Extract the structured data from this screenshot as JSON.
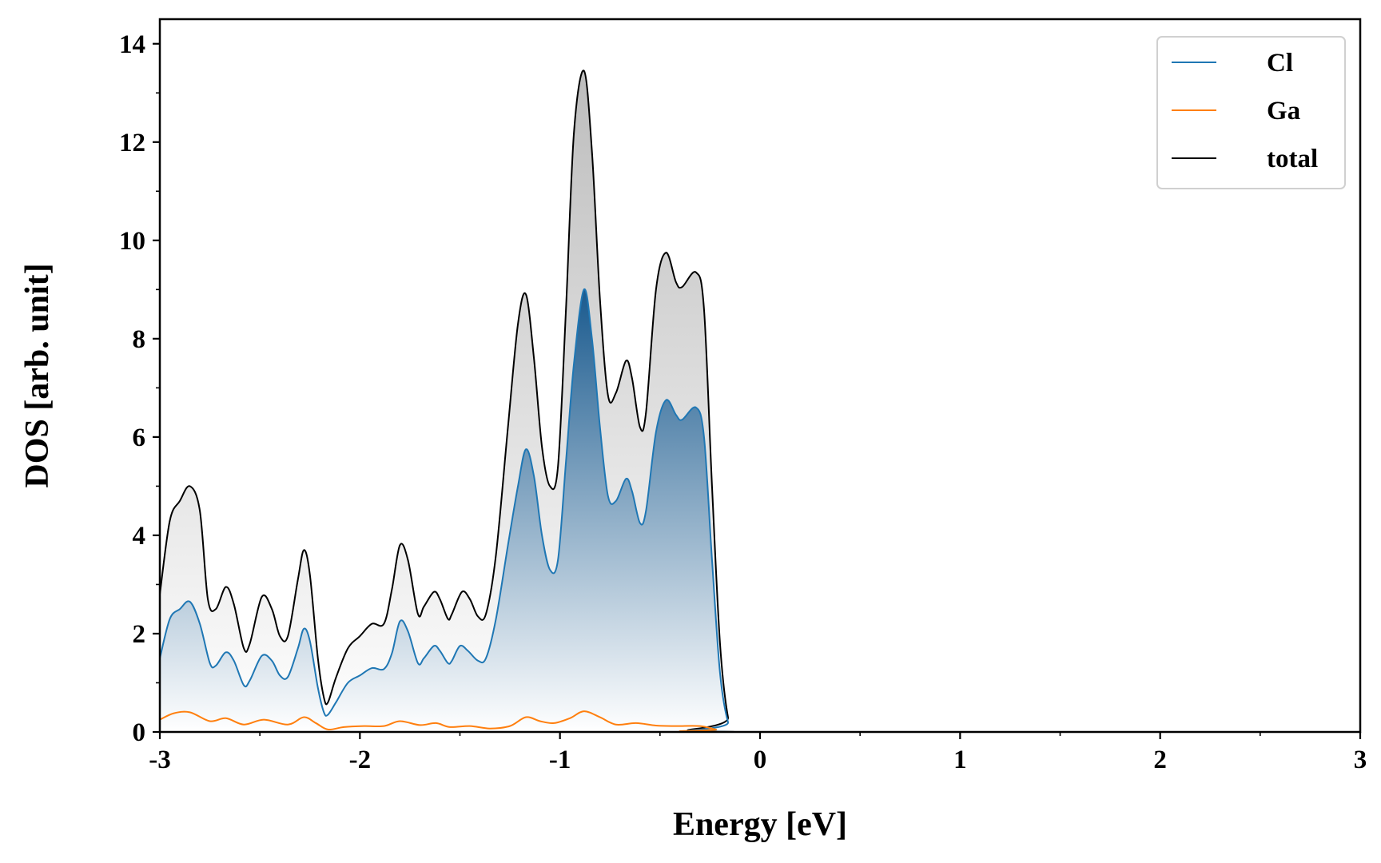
{
  "chart_data": {
    "type": "area",
    "xlabel": "Energy [eV]",
    "ylabel": "DOS [arb. unit]",
    "xlim": [
      -3,
      3
    ],
    "ylim": [
      0,
      14.5
    ],
    "xticks": [
      -3,
      -2,
      -1,
      0,
      1,
      2,
      3
    ],
    "xtick_labels": [
      "-3",
      "-2",
      "-1",
      "0",
      "1",
      "2",
      "3"
    ],
    "yticks": [
      0,
      2,
      4,
      6,
      8,
      10,
      12,
      14
    ],
    "ytick_labels": [
      "0",
      "2",
      "4",
      "6",
      "8",
      "10",
      "12",
      "14"
    ],
    "grid": false,
    "legend_position": "top-right",
    "series": [
      {
        "name": "Cl",
        "color": "#1f77b4",
        "fill": "blue-gradient",
        "points": [
          [
            -3.0,
            1.5
          ],
          [
            -2.95,
            2.3
          ],
          [
            -2.9,
            2.5
          ],
          [
            -2.85,
            2.65
          ],
          [
            -2.8,
            2.2
          ],
          [
            -2.75,
            1.4
          ],
          [
            -2.72,
            1.35
          ],
          [
            -2.67,
            1.62
          ],
          [
            -2.63,
            1.45
          ],
          [
            -2.58,
            0.95
          ],
          [
            -2.55,
            1.05
          ],
          [
            -2.49,
            1.55
          ],
          [
            -2.44,
            1.45
          ],
          [
            -2.4,
            1.15
          ],
          [
            -2.36,
            1.12
          ],
          [
            -2.31,
            1.7
          ],
          [
            -2.28,
            2.1
          ],
          [
            -2.25,
            1.85
          ],
          [
            -2.21,
            0.9
          ],
          [
            -2.18,
            0.4
          ],
          [
            -2.16,
            0.35
          ],
          [
            -2.12,
            0.6
          ],
          [
            -2.06,
            1.0
          ],
          [
            -2.0,
            1.15
          ],
          [
            -1.94,
            1.3
          ],
          [
            -1.88,
            1.28
          ],
          [
            -1.84,
            1.6
          ],
          [
            -1.8,
            2.25
          ],
          [
            -1.76,
            2.05
          ],
          [
            -1.71,
            1.4
          ],
          [
            -1.68,
            1.5
          ],
          [
            -1.63,
            1.75
          ],
          [
            -1.6,
            1.65
          ],
          [
            -1.56,
            1.4
          ],
          [
            -1.54,
            1.45
          ],
          [
            -1.5,
            1.75
          ],
          [
            -1.46,
            1.65
          ],
          [
            -1.41,
            1.45
          ],
          [
            -1.37,
            1.5
          ],
          [
            -1.32,
            2.3
          ],
          [
            -1.26,
            3.8
          ],
          [
            -1.21,
            5.0
          ],
          [
            -1.17,
            5.75
          ],
          [
            -1.13,
            5.2
          ],
          [
            -1.09,
            4.0
          ],
          [
            -1.05,
            3.3
          ],
          [
            -1.01,
            3.5
          ],
          [
            -0.97,
            5.5
          ],
          [
            -0.93,
            7.5
          ],
          [
            -0.88,
            9.0
          ],
          [
            -0.84,
            8.0
          ],
          [
            -0.8,
            6.2
          ],
          [
            -0.76,
            4.8
          ],
          [
            -0.72,
            4.7
          ],
          [
            -0.67,
            5.15
          ],
          [
            -0.64,
            4.9
          ],
          [
            -0.6,
            4.25
          ],
          [
            -0.57,
            4.5
          ],
          [
            -0.52,
            6.1
          ],
          [
            -0.47,
            6.75
          ],
          [
            -0.42,
            6.45
          ],
          [
            -0.39,
            6.35
          ],
          [
            -0.32,
            6.6
          ],
          [
            -0.28,
            6.0
          ],
          [
            -0.24,
            3.5
          ],
          [
            -0.2,
            1.2
          ],
          [
            -0.16,
            0.2
          ],
          [
            -0.12,
            0.0
          ],
          [
            3.0,
            0.0
          ]
        ]
      },
      {
        "name": "Ga",
        "color": "#ff7f0e",
        "points": [
          [
            -3.0,
            0.25
          ],
          [
            -2.93,
            0.38
          ],
          [
            -2.85,
            0.4
          ],
          [
            -2.75,
            0.22
          ],
          [
            -2.67,
            0.28
          ],
          [
            -2.58,
            0.15
          ],
          [
            -2.48,
            0.25
          ],
          [
            -2.36,
            0.15
          ],
          [
            -2.28,
            0.3
          ],
          [
            -2.22,
            0.18
          ],
          [
            -2.16,
            0.05
          ],
          [
            -2.08,
            0.1
          ],
          [
            -1.98,
            0.12
          ],
          [
            -1.88,
            0.12
          ],
          [
            -1.8,
            0.22
          ],
          [
            -1.7,
            0.14
          ],
          [
            -1.62,
            0.18
          ],
          [
            -1.55,
            0.1
          ],
          [
            -1.45,
            0.12
          ],
          [
            -1.35,
            0.07
          ],
          [
            -1.25,
            0.12
          ],
          [
            -1.17,
            0.3
          ],
          [
            -1.1,
            0.22
          ],
          [
            -1.03,
            0.18
          ],
          [
            -0.95,
            0.28
          ],
          [
            -0.88,
            0.42
          ],
          [
            -0.8,
            0.3
          ],
          [
            -0.72,
            0.15
          ],
          [
            -0.62,
            0.18
          ],
          [
            -0.52,
            0.13
          ],
          [
            -0.42,
            0.12
          ],
          [
            -0.3,
            0.12
          ],
          [
            -0.22,
            0.05
          ],
          [
            -0.15,
            0.0
          ],
          [
            3.0,
            0.0
          ]
        ]
      },
      {
        "name": "total",
        "color": "#000000",
        "fill": "gray-gradient",
        "points": [
          [
            -3.0,
            2.8
          ],
          [
            -2.95,
            4.3
          ],
          [
            -2.9,
            4.7
          ],
          [
            -2.85,
            5.0
          ],
          [
            -2.8,
            4.5
          ],
          [
            -2.76,
            2.7
          ],
          [
            -2.72,
            2.5
          ],
          [
            -2.67,
            2.95
          ],
          [
            -2.63,
            2.6
          ],
          [
            -2.58,
            1.7
          ],
          [
            -2.55,
            1.8
          ],
          [
            -2.49,
            2.75
          ],
          [
            -2.44,
            2.5
          ],
          [
            -2.4,
            1.95
          ],
          [
            -2.36,
            1.95
          ],
          [
            -2.31,
            3.1
          ],
          [
            -2.28,
            3.7
          ],
          [
            -2.25,
            3.2
          ],
          [
            -2.21,
            1.5
          ],
          [
            -2.18,
            0.7
          ],
          [
            -2.16,
            0.6
          ],
          [
            -2.12,
            1.1
          ],
          [
            -2.06,
            1.7
          ],
          [
            -2.0,
            1.95
          ],
          [
            -1.94,
            2.2
          ],
          [
            -1.88,
            2.2
          ],
          [
            -1.84,
            2.9
          ],
          [
            -1.8,
            3.8
          ],
          [
            -1.76,
            3.5
          ],
          [
            -1.71,
            2.4
          ],
          [
            -1.68,
            2.55
          ],
          [
            -1.63,
            2.85
          ],
          [
            -1.6,
            2.7
          ],
          [
            -1.56,
            2.3
          ],
          [
            -1.54,
            2.4
          ],
          [
            -1.49,
            2.85
          ],
          [
            -1.45,
            2.7
          ],
          [
            -1.41,
            2.35
          ],
          [
            -1.37,
            2.4
          ],
          [
            -1.32,
            3.6
          ],
          [
            -1.26,
            6.2
          ],
          [
            -1.21,
            8.3
          ],
          [
            -1.17,
            8.9
          ],
          [
            -1.13,
            7.6
          ],
          [
            -1.09,
            5.8
          ],
          [
            -1.05,
            5.0
          ],
          [
            -1.01,
            5.4
          ],
          [
            -0.97,
            8.6
          ],
          [
            -0.93,
            12.2
          ],
          [
            -0.88,
            13.45
          ],
          [
            -0.84,
            11.8
          ],
          [
            -0.8,
            8.8
          ],
          [
            -0.76,
            6.85
          ],
          [
            -0.72,
            6.9
          ],
          [
            -0.67,
            7.55
          ],
          [
            -0.64,
            7.2
          ],
          [
            -0.6,
            6.2
          ],
          [
            -0.57,
            6.5
          ],
          [
            -0.52,
            9.0
          ],
          [
            -0.47,
            9.75
          ],
          [
            -0.42,
            9.15
          ],
          [
            -0.39,
            9.05
          ],
          [
            -0.32,
            9.35
          ],
          [
            -0.28,
            8.6
          ],
          [
            -0.24,
            5.0
          ],
          [
            -0.2,
            1.8
          ],
          [
            -0.16,
            0.3
          ],
          [
            -0.12,
            0.0
          ],
          [
            3.0,
            0.0
          ]
        ]
      }
    ]
  }
}
